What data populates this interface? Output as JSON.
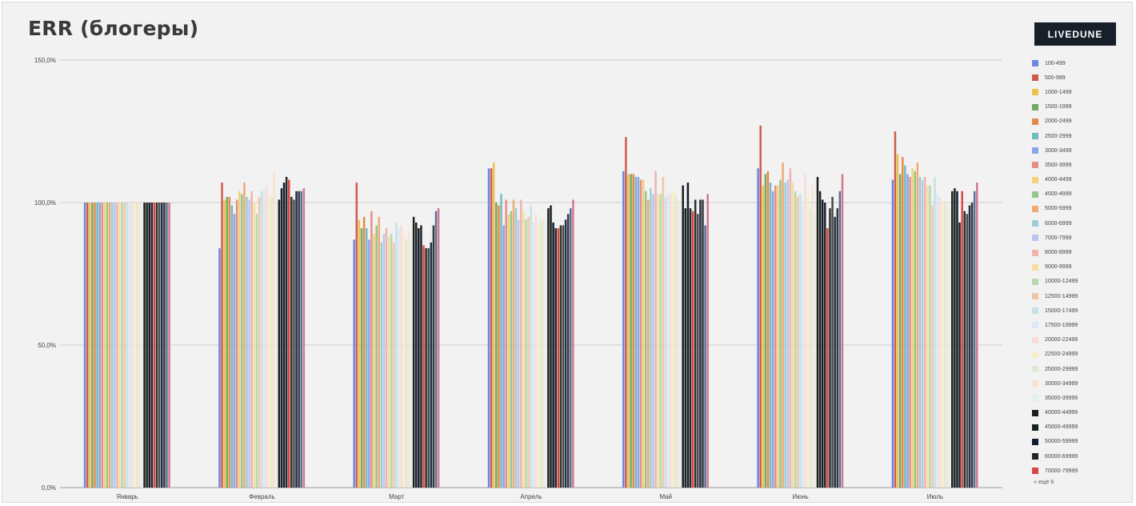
{
  "brand": {
    "label": "LIVEDUNE"
  },
  "legend_more": "« ещё 6",
  "chart_data": {
    "type": "bar",
    "title": "ERR (блогеры)",
    "xlabel": "",
    "ylabel": "",
    "ylim": [
      0,
      150
    ],
    "y_ticks": [
      {
        "value": 0,
        "label": "0,0%"
      },
      {
        "value": 50,
        "label": "50,0%"
      },
      {
        "value": 100,
        "label": "100,0%"
      },
      {
        "value": 150,
        "label": "150,0%"
      }
    ],
    "grid": true,
    "legend_position": "right",
    "categories": [
      "Январь",
      "Февраль",
      "Март",
      "Апрель",
      "Май",
      "Июнь",
      "Июль"
    ],
    "series": [
      {
        "name": "100-499",
        "color": "#6a86e0",
        "values": [
          100,
          84,
          87,
          112,
          111,
          112,
          108
        ]
      },
      {
        "name": "500-999",
        "color": "#cf5b4d",
        "values": [
          100,
          107,
          107,
          112,
          123,
          127,
          125
        ]
      },
      {
        "name": "1000-1499",
        "color": "#eec14e",
        "values": [
          100,
          101,
          94,
          114,
          110,
          106,
          117
        ]
      },
      {
        "name": "1500-1999",
        "color": "#72aa5f",
        "values": [
          100,
          102,
          91,
          100,
          110,
          110,
          110
        ]
      },
      {
        "name": "2000-2499",
        "color": "#e58a4a",
        "values": [
          100,
          102,
          95,
          99,
          110,
          111,
          116
        ]
      },
      {
        "name": "2500-2999",
        "color": "#74b8c2",
        "values": [
          100,
          99,
          91,
          103,
          109,
          107,
          113
        ]
      },
      {
        "name": "3000-3499",
        "color": "#8aa4ea",
        "values": [
          100,
          96,
          87,
          92,
          109,
          104,
          110
        ]
      },
      {
        "name": "3500-3999",
        "color": "#e58f85",
        "values": [
          100,
          101,
          97,
          101,
          108,
          106,
          109
        ]
      },
      {
        "name": "4000-4499",
        "color": "#f2d27a",
        "values": [
          100,
          104,
          89,
          96,
          108,
          106,
          112
        ]
      },
      {
        "name": "4500-4999",
        "color": "#95c488",
        "values": [
          100,
          103,
          92,
          97,
          104,
          108,
          111
        ]
      },
      {
        "name": "5000-5999",
        "color": "#f0aa74",
        "values": [
          100,
          107,
          95,
          101,
          101,
          114,
          114
        ]
      },
      {
        "name": "6000-6999",
        "color": "#9fcdd4",
        "values": [
          100,
          102,
          86,
          98,
          105,
          107,
          109
        ]
      },
      {
        "name": "7000-7999",
        "color": "#b9c7f0",
        "values": [
          100,
          101,
          89,
          94,
          103,
          108,
          108
        ]
      },
      {
        "name": "8000-8999",
        "color": "#efb4ad",
        "values": [
          100,
          104,
          91,
          101,
          111,
          112,
          109
        ]
      },
      {
        "name": "9000-9999",
        "color": "#f5dfa0",
        "values": [
          100,
          100,
          88,
          97,
          103,
          107,
          106
        ]
      },
      {
        "name": "10000-12499",
        "color": "#b7d8ad",
        "values": [
          100,
          96,
          89,
          94,
          103,
          104,
          106
        ]
      },
      {
        "name": "12500-14999",
        "color": "#f3c6a3",
        "values": [
          100,
          102,
          86,
          95,
          109,
          102,
          99
        ]
      },
      {
        "name": "15000-17499",
        "color": "#c4e2e6",
        "values": [
          100,
          104,
          93,
          99,
          102,
          103,
          109
        ]
      },
      {
        "name": "17500-19999",
        "color": "#dfe6f8",
        "values": [
          100,
          105,
          91,
          93,
          103,
          99,
          103
        ]
      },
      {
        "name": "20000-22499",
        "color": "#f7dcd8",
        "values": [
          100,
          106,
          92,
          96,
          103,
          110,
          102
        ]
      },
      {
        "name": "22500-24999",
        "color": "#f8edc4",
        "values": [
          100,
          103,
          89,
          92,
          104,
          102,
          100
        ]
      },
      {
        "name": "25000-29999",
        "color": "#dcebd4",
        "values": [
          100,
          102,
          87,
          94,
          103,
          98,
          100
        ]
      },
      {
        "name": "30000-34999",
        "color": "#f8e3d0",
        "values": [
          100,
          111,
          90,
          94,
          101,
          106,
          99
        ]
      },
      {
        "name": "35000-39999",
        "color": "#e3f0f1",
        "values": [
          100,
          103,
          88,
          94,
          100,
          97,
          99
        ]
      },
      {
        "name": "40000-44999",
        "color": "#1e1e1a",
        "values": [
          100,
          101,
          95,
          98,
          106,
          109,
          104
        ]
      },
      {
        "name": "45000-49999",
        "color": "#16241c",
        "values": [
          100,
          105,
          93,
          99,
          98,
          104,
          105
        ]
      },
      {
        "name": "50000-59999",
        "color": "#111a33",
        "values": [
          100,
          107,
          91,
          93,
          107,
          101,
          104
        ]
      },
      {
        "name": "60000-69999",
        "color": "#252322",
        "values": [
          100,
          109,
          92,
          91,
          98,
          100,
          93
        ]
      },
      {
        "name": "70000-79999",
        "color": "#d94545",
        "values": [
          100,
          108,
          85,
          91,
          97,
          91,
          104
        ]
      },
      {
        "name": "",
        "color": "#2f2f2f",
        "values": [
          100,
          102,
          84,
          92,
          101,
          98,
          97
        ]
      },
      {
        "name": "",
        "color": "#4a4a4a",
        "values": [
          100,
          101,
          84,
          92,
          96,
          102,
          96
        ]
      },
      {
        "name": "",
        "color": "#1f2f4a",
        "values": [
          100,
          104,
          86,
          94,
          101,
          95,
          99
        ]
      },
      {
        "name": "",
        "color": "#383838",
        "values": [
          100,
          104,
          92,
          96,
          101,
          98,
          100
        ]
      },
      {
        "name": "",
        "color": "#5d6f9a",
        "values": [
          100,
          104,
          97,
          98,
          92,
          104,
          104
        ]
      },
      {
        "name": "",
        "color": "#d07a8a",
        "values": [
          100,
          105,
          98,
          101,
          103,
          110,
          107
        ]
      }
    ]
  }
}
